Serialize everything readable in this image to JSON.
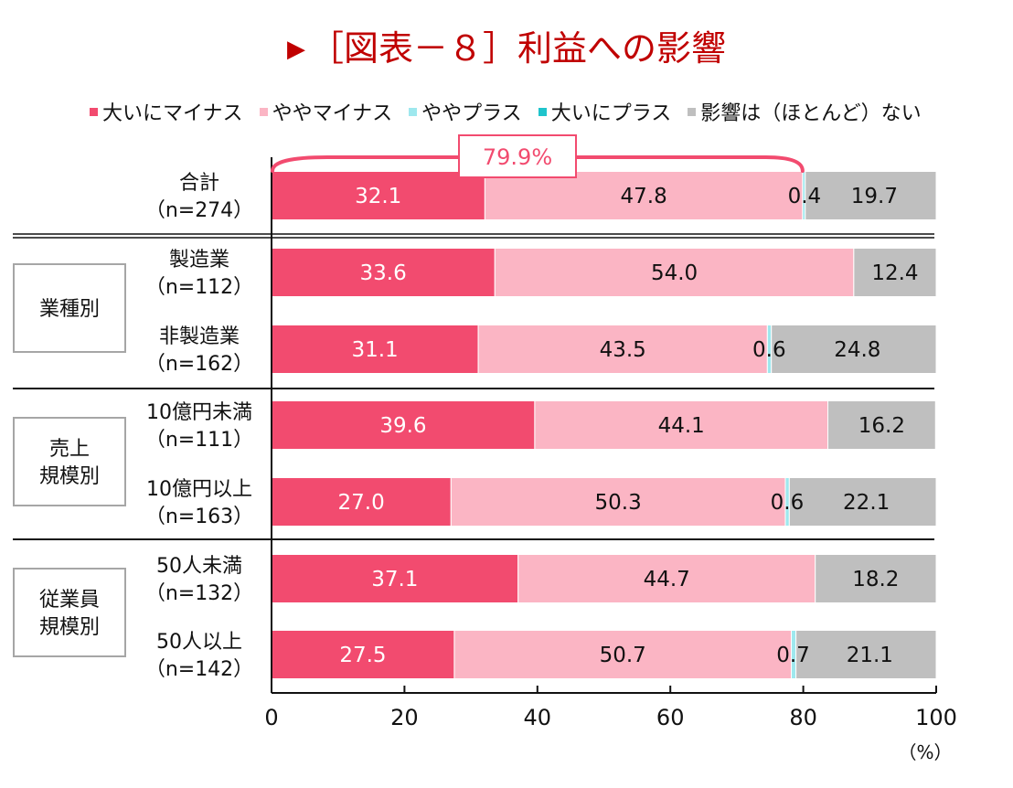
{
  "title": {
    "marker": "▶",
    "text": "［図表－８］利益への影響"
  },
  "colors": {
    "strong_minus": "#f24b6f",
    "slight_minus": "#fbb5c4",
    "slight_plus": "#9ee8ee",
    "strong_plus": "#1fc4cc",
    "no_impact": "#bfbfbf",
    "title": "#c00000",
    "annotation": "#f24b6f"
  },
  "chart_data": {
    "type": "bar",
    "orientation": "horizontal",
    "stacked": true,
    "title": "［図表－８］利益への影響",
    "xlabel": "",
    "unit_label": "（%）",
    "xlim": [
      0,
      100
    ],
    "xticks": [
      "0",
      "20",
      "40",
      "60",
      "80",
      "100"
    ],
    "legend_position": "top",
    "legend": [
      "大いにマイナス",
      "ややマイナス",
      "ややプラス",
      "大いにプラス",
      "影響は（ほとんど）ない"
    ],
    "categories": [
      {
        "name": "合計",
        "n": "（n=274）",
        "group": ""
      },
      {
        "name": "製造業",
        "n": "（n=112）",
        "group": "業種別"
      },
      {
        "name": "非製造業",
        "n": "（n=162）",
        "group": "業種別"
      },
      {
        "name": "10億円未満",
        "n": "（n=111）",
        "group": "売上規模別"
      },
      {
        "name": "10億円以上",
        "n": "（n=163）",
        "group": "売上規模別"
      },
      {
        "name": "50人未満",
        "n": "（n=132）",
        "group": "従業員規模別"
      },
      {
        "name": "50人以上",
        "n": "（n=142）",
        "group": "従業員規模別"
      }
    ],
    "groups": [
      {
        "label_lines": [
          "業種別"
        ]
      },
      {
        "label_lines": [
          "売上",
          "規模別"
        ]
      },
      {
        "label_lines": [
          "従業員",
          "規模別"
        ]
      }
    ],
    "series": [
      {
        "name": "大いにマイナス",
        "values": [
          32.1,
          33.6,
          31.1,
          39.6,
          27.0,
          37.1,
          27.5
        ]
      },
      {
        "name": "ややマイナス",
        "values": [
          47.8,
          54.0,
          43.5,
          44.1,
          50.3,
          44.7,
          50.7
        ]
      },
      {
        "name": "ややプラス",
        "values": [
          0.4,
          0.0,
          0.6,
          0.0,
          0.6,
          0.0,
          0.7
        ]
      },
      {
        "name": "大いにプラス",
        "values": [
          0.0,
          0.0,
          0.0,
          0.0,
          0.0,
          0.0,
          0.0
        ]
      },
      {
        "name": "影響は（ほとんど）ない",
        "values": [
          19.7,
          12.4,
          24.8,
          16.2,
          22.1,
          18.2,
          21.1
        ]
      }
    ],
    "data_labels": [
      [
        "32.1",
        "47.8",
        "0.4",
        "",
        "19.7"
      ],
      [
        "33.6",
        "54.0",
        "",
        "",
        "12.4"
      ],
      [
        "31.1",
        "43.5",
        "0.6",
        "",
        "24.8"
      ],
      [
        "39.6",
        "44.1",
        "",
        "",
        "16.2"
      ],
      [
        "27.0",
        "50.3",
        "0.6",
        "",
        "22.1"
      ],
      [
        "37.1",
        "44.7",
        "",
        "",
        "18.2"
      ],
      [
        "27.5",
        "50.7",
        "0.7",
        "",
        "21.1"
      ]
    ],
    "annotation": {
      "text": "79.9%",
      "span": [
        0,
        79.9
      ],
      "row": "合計"
    }
  }
}
